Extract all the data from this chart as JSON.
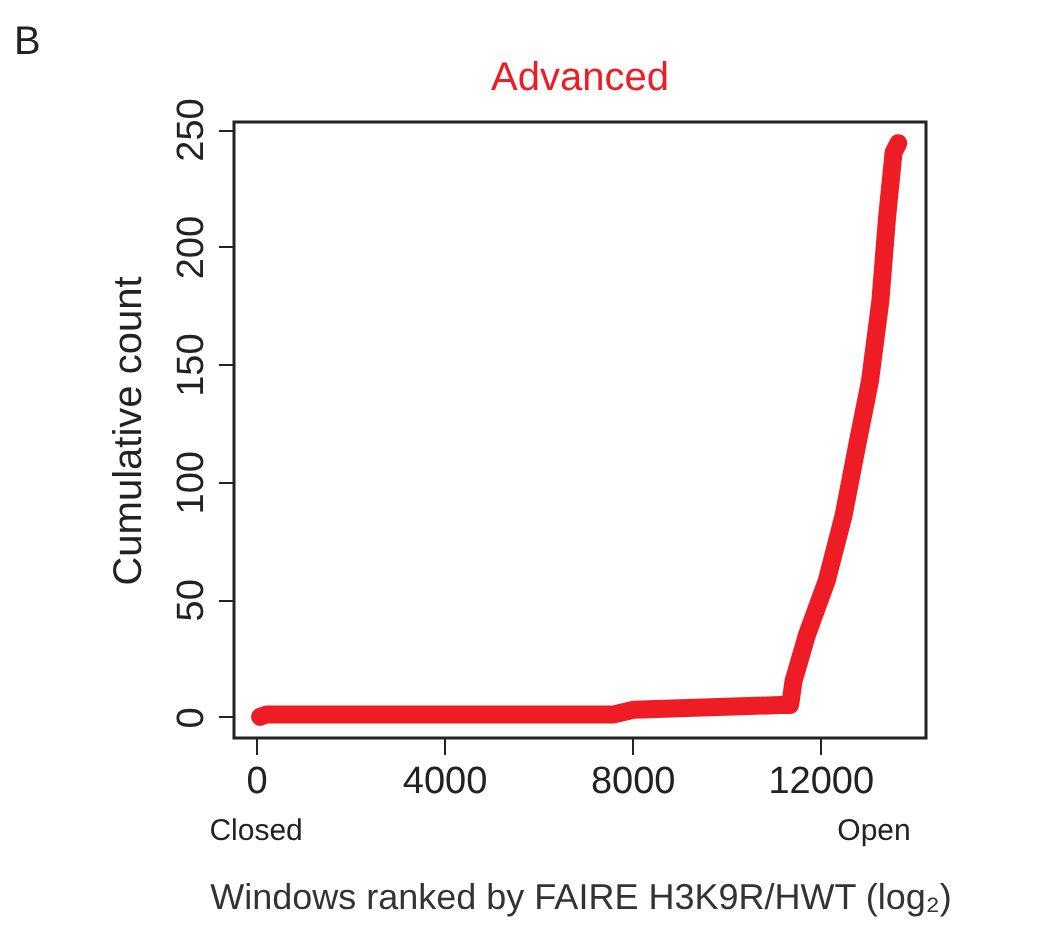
{
  "chart_data": {
    "type": "line",
    "title": "Advanced",
    "xlabel": "Windows ranked by FAIRE H3K9R/HWT (log₂)",
    "ylabel": "Cumulative count",
    "annotations": [
      "B",
      "Closed",
      "Open"
    ],
    "series": [
      {
        "color": "#ee1c25",
        "x": [
          85,
          226,
          7600,
          8030,
          11150,
          11360,
          11430,
          11720,
          12140,
          12500,
          12780,
          13060,
          13280,
          13420,
          13560,
          13660
        ],
        "values": [
          0,
          1,
          1,
          3,
          5,
          5,
          15,
          35,
          58,
          86,
          115,
          143,
          177,
          212,
          240,
          244
        ]
      }
    ],
    "xlim": [
      -470,
      14250
    ],
    "ylim": [
      -9,
      253
    ],
    "xticks": [
      0,
      4000,
      8000,
      12000
    ],
    "yticks": [
      0,
      50,
      100,
      150,
      200,
      250
    ],
    "grid": false,
    "line_style": "solid"
  }
}
